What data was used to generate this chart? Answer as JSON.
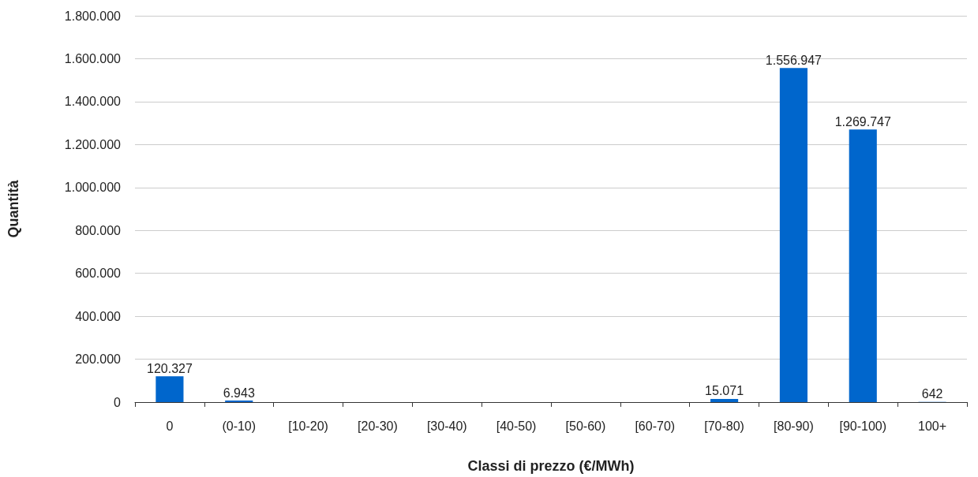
{
  "chart_data": {
    "type": "bar",
    "xlabel": "Classi di prezzo (€/MWh)",
    "ylabel": "Quantità",
    "categories": [
      "0",
      "(0-10)",
      "[10-20)",
      "[20-30)",
      "[30-40)",
      "[40-50)",
      "[50-60)",
      "[60-70)",
      "[70-80)",
      "[80-90)",
      "[90-100)",
      "100+"
    ],
    "values": [
      120327,
      6943,
      null,
      null,
      null,
      null,
      null,
      null,
      15071,
      1556947,
      1269747,
      642
    ],
    "value_labels": [
      "120.327",
      "6.943",
      null,
      null,
      null,
      null,
      null,
      null,
      "15.071",
      "1.556.947",
      "1.269.747",
      "642"
    ],
    "color": "#0066cc",
    "ylim": [
      0,
      1800000
    ],
    "yticks": [
      0,
      {
        "value": 200000,
        "label": "200.000"
      },
      {
        "value": 400000,
        "label": "400.000"
      },
      {
        "value": 600000,
        "label": "600.000"
      },
      {
        "value": 800000,
        "label": "800.000"
      },
      {
        "value": 1000000,
        "label": "1.000.000"
      },
      {
        "value": 1200000,
        "label": "1.200.000"
      },
      {
        "value": 1400000,
        "label": "1.400.000"
      },
      {
        "value": 1600000,
        "label": "1.600.000"
      },
      {
        "value": 1800000,
        "label": "1.800.000"
      }
    ],
    "grid": "y"
  }
}
